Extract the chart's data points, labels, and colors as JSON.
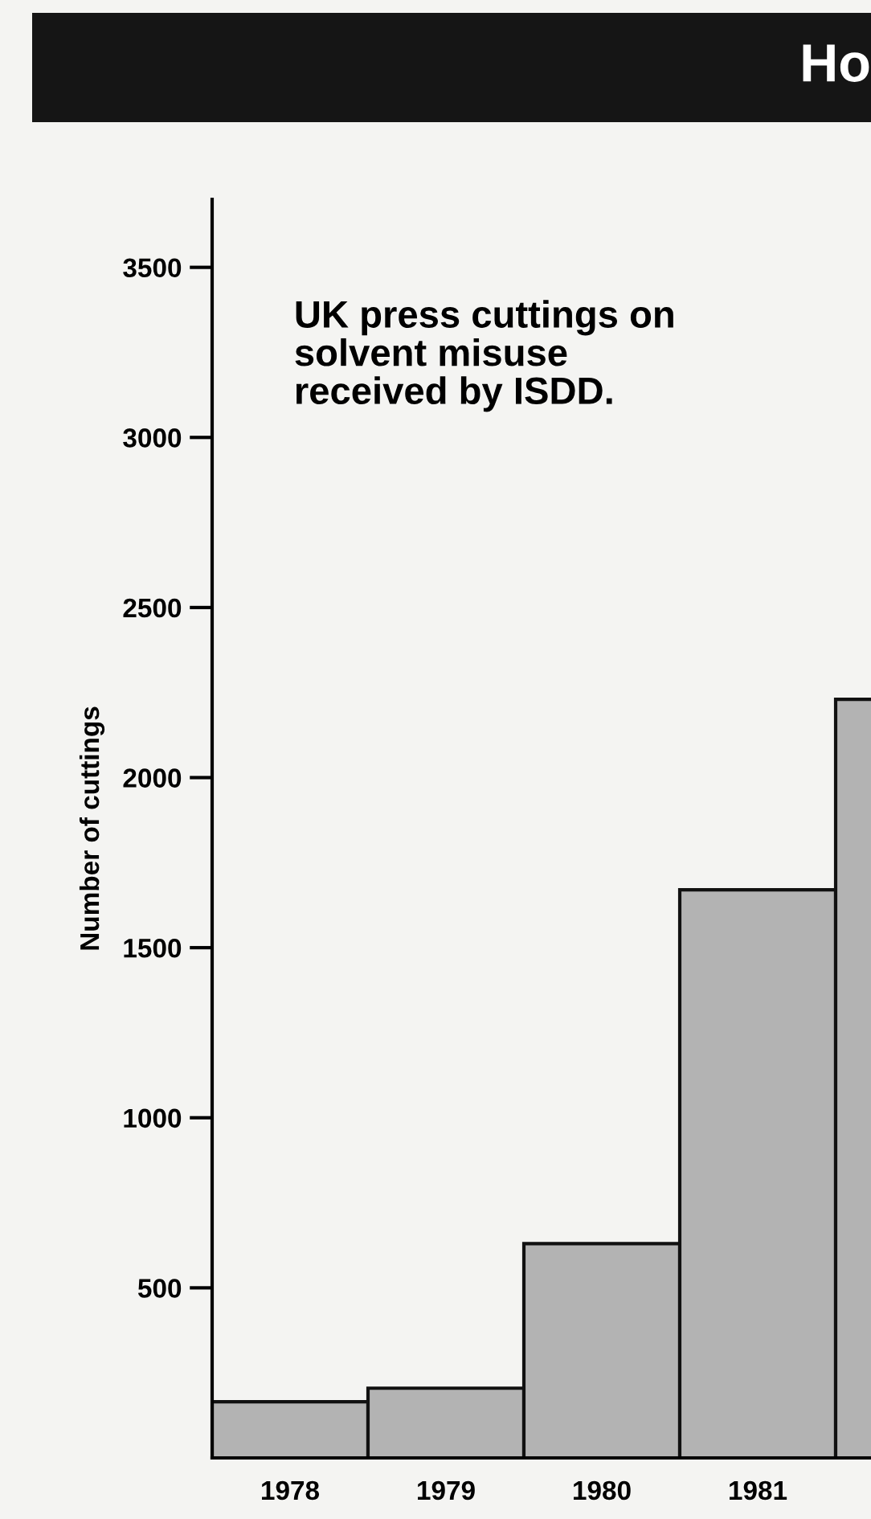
{
  "chart_data": {
    "type": "bar",
    "title": "UK press cuttings on\nsolvent misuse\nreceived by ISDD.",
    "ylabel": "Number of cuttings",
    "annotations": [
      "Ho"
    ],
    "categories": [
      "1978",
      "1979",
      "1980",
      "1981",
      null
    ],
    "values": [
      165,
      205,
      630,
      1670,
      2230
    ],
    "color": "#b3b3b3",
    "ylim": [
      0,
      3700
    ],
    "yticks": [
      500,
      1000,
      1500,
      2000,
      2500,
      3000,
      3500
    ],
    "grid": false
  }
}
